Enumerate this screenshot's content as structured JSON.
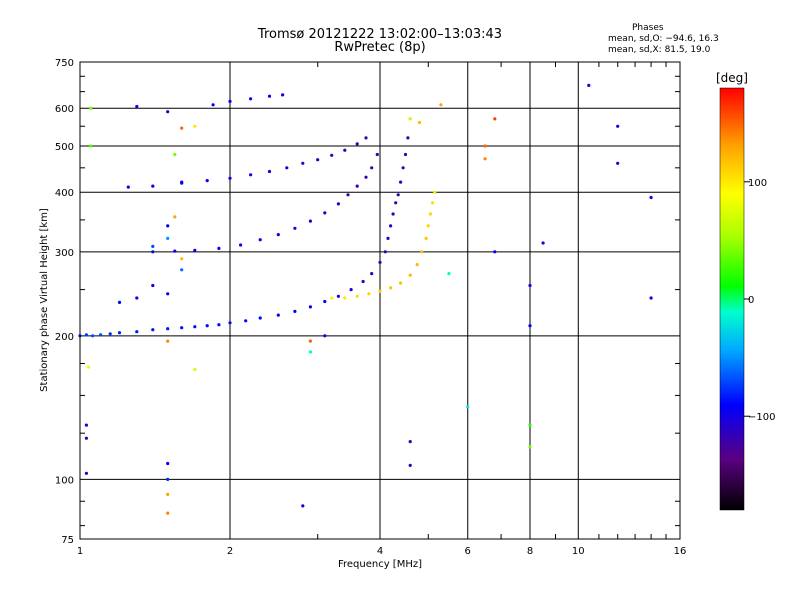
{
  "chart_data": {
    "type": "scatter",
    "title": "Tromsø 20121222 13:02:00–13:03:43",
    "subtitle": "RwPretec (8p)",
    "xlabel": "Frequency [MHz]",
    "ylabel": "Stationary phase Virtual Height [km]",
    "x_scale": "log",
    "y_scale": "log",
    "xlim": [
      1,
      16
    ],
    "ylim": [
      75,
      750
    ],
    "x_ticks": [
      1,
      2,
      4,
      6,
      8,
      10,
      16
    ],
    "y_ticks": [
      75,
      100,
      200,
      300,
      400,
      500,
      600,
      750
    ],
    "grid": true,
    "stats": {
      "heading": "Phases",
      "line_o": "mean, sd,O: −94.6, 16.3",
      "line_x": "mean, sd,X:  81.5, 19.0"
    },
    "colorbar": {
      "label": "[deg]",
      "range": [
        -180,
        180
      ],
      "ticks": [
        100,
        0,
        -100
      ]
    },
    "series": [
      {
        "points": [
          [
            1.0,
            200,
            -80
          ],
          [
            1.03,
            201,
            -75
          ],
          [
            1.06,
            200,
            -70
          ],
          [
            1.1,
            201,
            -72
          ],
          [
            1.15,
            202,
            -78
          ],
          [
            1.2,
            203,
            -82
          ],
          [
            1.3,
            204,
            -85
          ],
          [
            1.4,
            206,
            -85
          ],
          [
            1.5,
            207,
            -85
          ],
          [
            1.6,
            208,
            -86
          ],
          [
            1.7,
            209,
            -86
          ],
          [
            1.8,
            210,
            -87
          ],
          [
            1.9,
            211,
            -88
          ],
          [
            2.0,
            213,
            -88
          ],
          [
            2.15,
            215,
            -88
          ],
          [
            2.3,
            218,
            -89
          ],
          [
            2.5,
            221,
            -90
          ],
          [
            2.7,
            225,
            -90
          ],
          [
            2.9,
            230,
            -92
          ],
          [
            3.1,
            236,
            -95
          ],
          [
            3.3,
            242,
            -100
          ],
          [
            3.5,
            250,
            -105
          ],
          [
            3.7,
            260,
            -110
          ],
          [
            3.85,
            270,
            -112
          ],
          [
            4.0,
            285,
            -115
          ],
          [
            4.1,
            300,
            -115
          ],
          [
            4.15,
            320,
            -115
          ],
          [
            4.2,
            340,
            -115
          ],
          [
            4.25,
            360,
            -116
          ],
          [
            4.3,
            380,
            -116
          ],
          [
            4.35,
            395,
            -116
          ],
          [
            4.4,
            420,
            -116
          ],
          [
            4.45,
            450,
            -117
          ],
          [
            4.5,
            480,
            -118
          ],
          [
            4.55,
            520,
            -120
          ],
          [
            3.2,
            240,
            95
          ],
          [
            3.4,
            240,
            100
          ],
          [
            3.6,
            242,
            105
          ],
          [
            3.8,
            245,
            110
          ],
          [
            4.0,
            248,
            112
          ],
          [
            4.2,
            252,
            115
          ],
          [
            4.4,
            258,
            118
          ],
          [
            4.6,
            268,
            120
          ],
          [
            4.75,
            282,
            122
          ],
          [
            4.85,
            300,
            120
          ],
          [
            4.95,
            320,
            115
          ],
          [
            5.0,
            340,
            110
          ],
          [
            5.05,
            360,
            108
          ],
          [
            5.1,
            380,
            105
          ],
          [
            5.15,
            400,
            100
          ],
          [
            1.25,
            410,
            -95
          ],
          [
            1.4,
            412,
            -95
          ],
          [
            1.6,
            418,
            -95
          ],
          [
            1.8,
            423,
            -96
          ],
          [
            2.0,
            428,
            -97
          ],
          [
            2.2,
            435,
            -98
          ],
          [
            2.4,
            442,
            -100
          ],
          [
            2.6,
            450,
            -104
          ],
          [
            2.8,
            460,
            -108
          ],
          [
            3.0,
            468,
            -112
          ],
          [
            3.2,
            478,
            -115
          ],
          [
            3.4,
            490,
            -118
          ],
          [
            3.6,
            505,
            -120
          ],
          [
            3.75,
            520,
            -122
          ],
          [
            1.4,
            300,
            -95
          ],
          [
            1.55,
            301,
            -95
          ],
          [
            1.7,
            302,
            -95
          ],
          [
            1.9,
            305,
            -96
          ],
          [
            2.1,
            310,
            -97
          ],
          [
            2.3,
            318,
            -98
          ],
          [
            2.5,
            326,
            -100
          ],
          [
            2.7,
            336,
            -104
          ],
          [
            2.9,
            348,
            -108
          ],
          [
            3.1,
            362,
            -112
          ],
          [
            3.3,
            378,
            -114
          ],
          [
            3.45,
            395,
            -116
          ],
          [
            3.6,
            412,
            -118
          ],
          [
            3.75,
            430,
            -120
          ],
          [
            3.85,
            450,
            -122
          ],
          [
            3.95,
            480,
            -122
          ],
          [
            1.85,
            610,
            -90
          ],
          [
            2.0,
            620,
            -90
          ],
          [
            2.2,
            628,
            -92
          ],
          [
            2.4,
            636,
            -94
          ],
          [
            2.55,
            640,
            -95
          ],
          [
            4.8,
            560,
            120
          ],
          [
            4.6,
            570,
            60
          ],
          [
            5.3,
            610,
            130
          ],
          [
            6.5,
            500,
            150
          ],
          [
            6.8,
            570,
            160
          ],
          [
            6.5,
            470,
            140
          ],
          [
            6.8,
            300,
            -90
          ],
          [
            8.0,
            210,
            -90
          ],
          [
            8.0,
            255,
            -100
          ],
          [
            8.5,
            313,
            -100
          ],
          [
            8.0,
            130,
            20
          ],
          [
            8.0,
            117,
            40
          ],
          [
            10.5,
            670,
            -110
          ],
          [
            12.0,
            550,
            -100
          ],
          [
            12.0,
            460,
            -100
          ],
          [
            14.0,
            390,
            -100
          ],
          [
            14.0,
            240,
            -100
          ],
          [
            5.5,
            270,
            -10
          ],
          [
            6.0,
            142,
            -20
          ],
          [
            4.6,
            120,
            -120
          ],
          [
            4.6,
            107,
            -120
          ],
          [
            2.8,
            88,
            -100
          ],
          [
            1.5,
            100,
            -80
          ],
          [
            1.5,
            93,
            130
          ],
          [
            1.5,
            85,
            140
          ],
          [
            1.5,
            108,
            -90
          ],
          [
            1.3,
            605,
            -100
          ],
          [
            1.5,
            590,
            -110
          ],
          [
            1.03,
            130,
            -100
          ],
          [
            1.03,
            122,
            -120
          ],
          [
            1.03,
            103,
            -100
          ],
          [
            1.04,
            172,
            80
          ],
          [
            1.05,
            600,
            40
          ],
          [
            1.05,
            500,
            30
          ],
          [
            1.6,
            545,
            150
          ],
          [
            1.7,
            550,
            100
          ],
          [
            1.7,
            170,
            70
          ],
          [
            1.5,
            195,
            140
          ],
          [
            2.9,
            195,
            150
          ],
          [
            2.9,
            185,
            -10
          ],
          [
            3.1,
            200,
            -100
          ],
          [
            1.2,
            235,
            -90
          ],
          [
            1.3,
            240,
            -100
          ],
          [
            1.5,
            245,
            -90
          ],
          [
            1.4,
            255,
            -100
          ],
          [
            1.6,
            275,
            -60
          ],
          [
            1.6,
            290,
            120
          ],
          [
            1.4,
            308,
            -70
          ],
          [
            1.55,
            355,
            130
          ],
          [
            1.5,
            320,
            -50
          ],
          [
            1.6,
            420,
            -90
          ],
          [
            1.55,
            480,
            40
          ],
          [
            1.5,
            340,
            -90
          ]
        ]
      }
    ]
  }
}
